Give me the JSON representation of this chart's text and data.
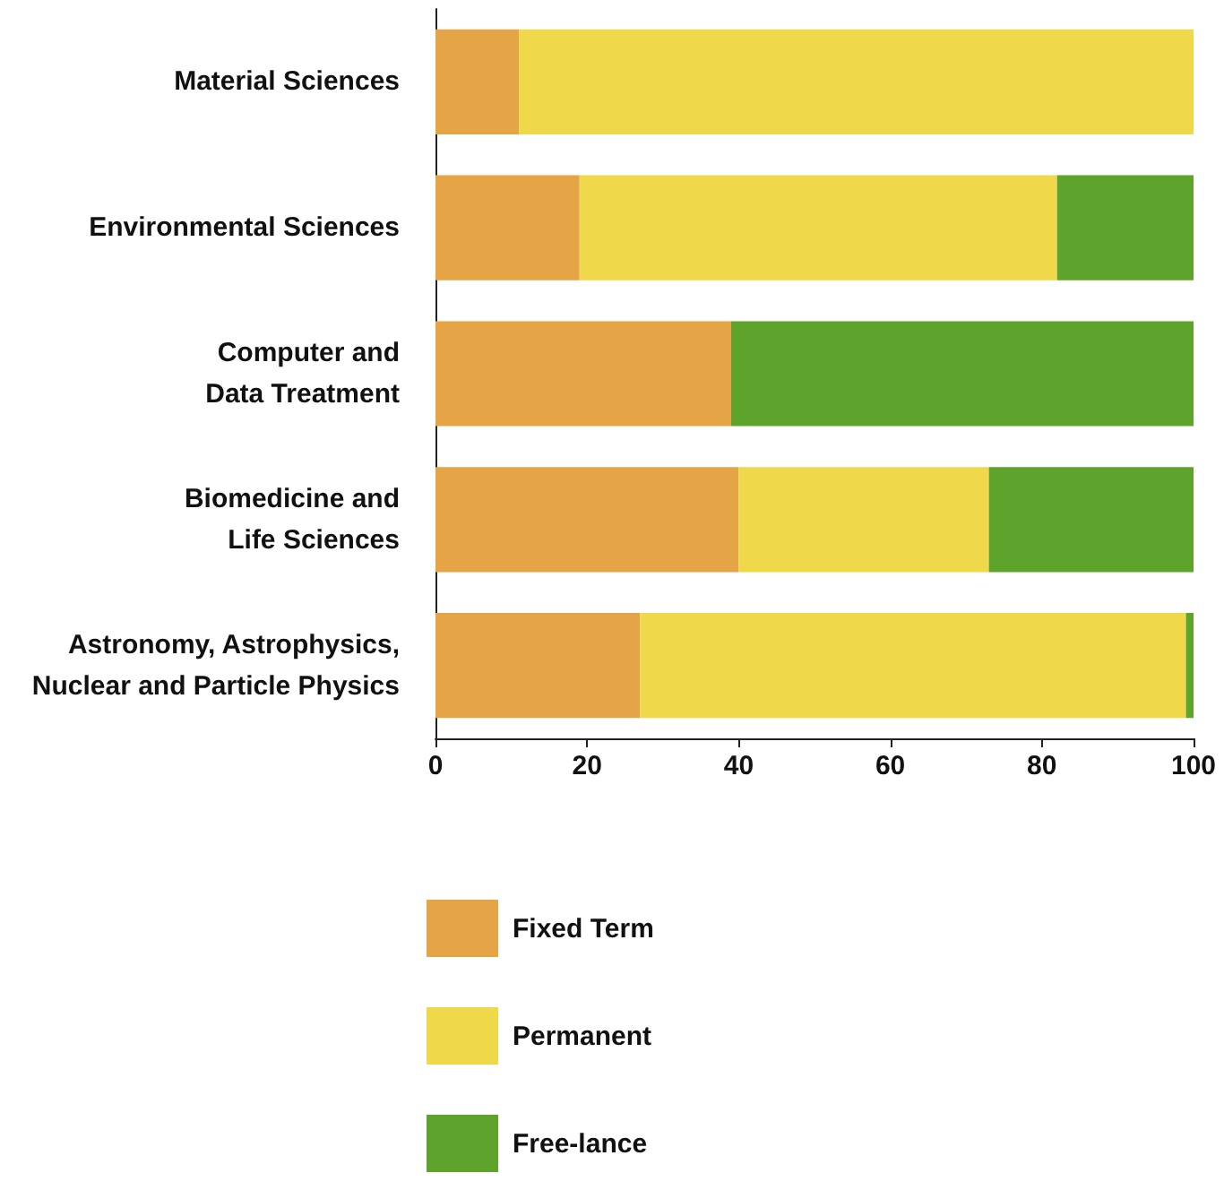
{
  "chart_data": {
    "type": "bar",
    "orientation": "horizontal",
    "stacked": true,
    "categories": [
      "Material Sciences",
      "Environmental Sciences",
      "Computer and\nData Treatment",
      "Biomedicine and\nLife Sciences",
      "Astronomy, Astrophysics,\nNuclear and Particle Physics"
    ],
    "series": [
      {
        "name": "Fixed Term",
        "color": "#e5a445",
        "values": [
          11,
          19,
          39,
          40,
          27
        ]
      },
      {
        "name": "Permanent",
        "color": "#efd84a",
        "values": [
          89,
          63,
          0,
          33,
          72
        ]
      },
      {
        "name": "Free-lance",
        "color": "#5ea32b",
        "values": [
          0,
          18,
          61,
          27,
          1
        ]
      }
    ],
    "xlim": [
      0,
      100
    ],
    "xticks": [
      0,
      20,
      40,
      60,
      80,
      100
    ],
    "grid": false,
    "legend": "bottom"
  }
}
